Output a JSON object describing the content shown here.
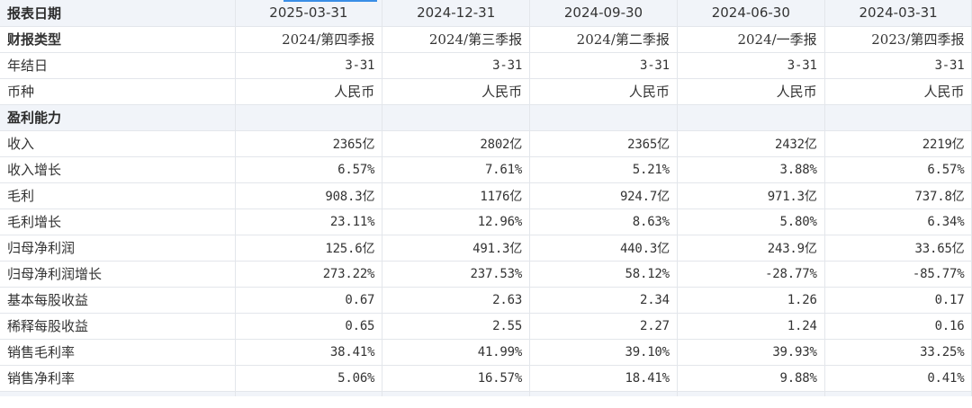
{
  "header": {
    "label": "报表日期",
    "dates": [
      "2025-03-31",
      "2024-12-31",
      "2024-09-30",
      "2024-06-30",
      "2024-03-31"
    ]
  },
  "meta_rows": [
    {
      "label": "财报类型",
      "bold": true,
      "values": [
        "2024/第四季报",
        "2024/第三季报",
        "2024/第二季报",
        "2024/一季报",
        "2023/第四季报"
      ]
    },
    {
      "label": "年结日",
      "bold": false,
      "values": [
        "3-31",
        "3-31",
        "3-31",
        "3-31",
        "3-31"
      ]
    },
    {
      "label": "币种",
      "bold": false,
      "values": [
        "人民币",
        "人民币",
        "人民币",
        "人民币",
        "人民币"
      ]
    }
  ],
  "section": {
    "label": "盈利能力"
  },
  "rows": [
    {
      "label": "收入",
      "values": [
        "2365亿",
        "2802亿",
        "2365亿",
        "2432亿",
        "2219亿"
      ]
    },
    {
      "label": "收入增长",
      "values": [
        "6.57%",
        "7.61%",
        "5.21%",
        "3.88%",
        "6.57%"
      ]
    },
    {
      "label": "毛利",
      "values": [
        "908.3亿",
        "1176亿",
        "924.7亿",
        "971.3亿",
        "737.8亿"
      ]
    },
    {
      "label": "毛利增长",
      "values": [
        "23.11%",
        "12.96%",
        "8.63%",
        "5.80%",
        "6.34%"
      ]
    },
    {
      "label": "归母净利润",
      "values": [
        "125.6亿",
        "491.3亿",
        "440.3亿",
        "243.9亿",
        "33.65亿"
      ]
    },
    {
      "label": "归母净利润增长",
      "values": [
        "273.22%",
        "237.53%",
        "58.12%",
        "-28.77%",
        "-85.77%"
      ]
    },
    {
      "label": "基本每股收益",
      "values": [
        "0.67",
        "2.63",
        "2.34",
        "1.26",
        "0.17"
      ]
    },
    {
      "label": "稀释每股收益",
      "values": [
        "0.65",
        "2.55",
        "2.27",
        "1.24",
        "0.16"
      ]
    },
    {
      "label": "销售毛利率",
      "values": [
        "38.41%",
        "41.99%",
        "39.10%",
        "39.93%",
        "33.25%"
      ]
    },
    {
      "label": "销售净利率",
      "values": [
        "5.06%",
        "16.57%",
        "18.41%",
        "9.88%",
        "0.41%"
      ]
    }
  ]
}
